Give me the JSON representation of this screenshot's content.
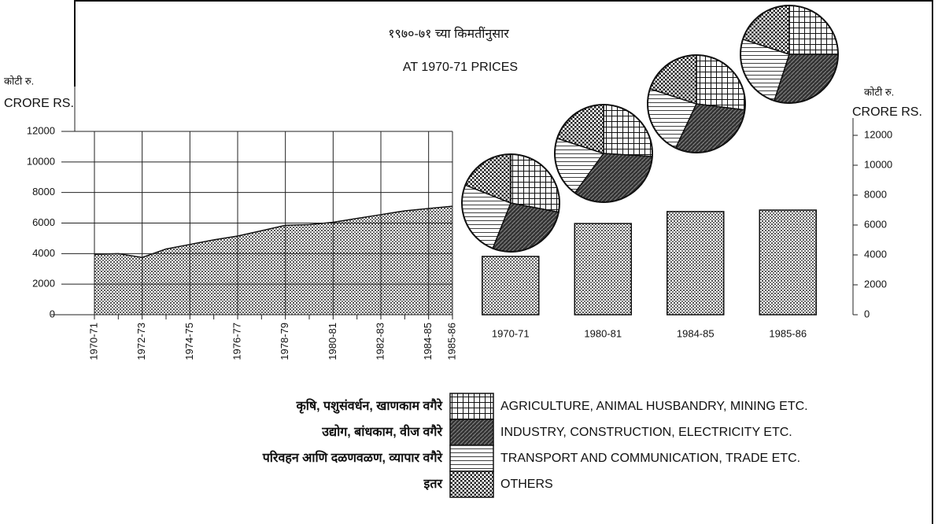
{
  "title_mr": "१९७०-७१ च्या किमतींनुसार",
  "title": "AT 1970-71 PRICES",
  "chart_data": [
    {
      "type": "area",
      "ylabel_mr": "कोटी रु.",
      "ylabel": "CRORE RS.",
      "categories": [
        "1970-71",
        null,
        "1972-73",
        null,
        "1974-75",
        null,
        "1976-77",
        null,
        "1978-79",
        null,
        "1980-81",
        null,
        "1982-83",
        null,
        "1984-85",
        "1985-86"
      ],
      "values": [
        3950,
        4000,
        3750,
        4300,
        4600,
        4900,
        5150,
        5500,
        5850,
        5900,
        6050,
        6300,
        6550,
        6800,
        6950,
        7100
      ],
      "ylim": [
        0,
        12000
      ],
      "yticks": [
        0,
        2000,
        4000,
        6000,
        8000,
        10000,
        12000
      ],
      "grid": true
    },
    {
      "type": "bar",
      "ylabel_mr": "कोटी रु.",
      "ylabel": "CRORE RS.",
      "categories": [
        "1970-71",
        "1980-81",
        "1984-85",
        "1985-86"
      ],
      "values": [
        3900,
        6100,
        6900,
        7000
      ],
      "ylim": [
        0,
        12000
      ],
      "yticks": [
        0,
        2000,
        4000,
        6000,
        8000,
        10000,
        12000
      ]
    },
    {
      "type": "pie",
      "categories": [
        "AGRICULTURE, ANIMAL HUSBANDRY, MINING ETC.",
        "INDUSTRY, CONSTRUCTION, ELECTRICITY ETC.",
        "TRANSPORT AND COMMUNICATION, TRADE ETC.",
        "OTHERS"
      ],
      "categories_mr": [
        "कृषि, पशुसंवर्धन, खाणकाम वगैरे",
        "उद्योग, बांधकाम, वीज वगैरे",
        "परिवहन आणि दळणवळण, व्यापार वगैरे",
        "इतर"
      ],
      "series": [
        {
          "values": [
            28,
            28,
            25,
            19
          ]
        },
        {
          "values": [
            26,
            34,
            20,
            20
          ]
        },
        {
          "values": [
            27,
            30,
            23,
            20
          ]
        },
        {
          "values": [
            25,
            30,
            25,
            20
          ]
        }
      ]
    }
  ]
}
